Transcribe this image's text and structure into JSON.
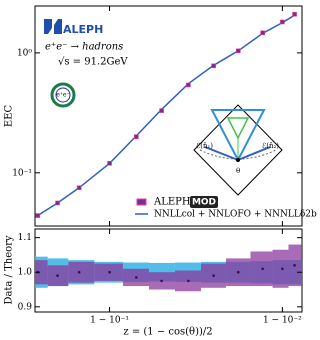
{
  "chart_data": [
    {
      "type": "line",
      "experiment": "ALEPH",
      "icon": "e⁺e⁻",
      "annotations": [
        "e⁺e⁻ → hadrons",
        "√s = 91.2GeV"
      ],
      "diagram_labels": [
        "ℰ(n̂₁)",
        "ℰ(n̂₂)",
        "θ"
      ],
      "legend_badge": "MOD",
      "ylabel": "EEC",
      "xlabel": "z = (1 − cos(θ))/2",
      "xscale": "log1m",
      "yscale": "log",
      "x": [
        0.74,
        0.8,
        0.85,
        0.9,
        0.93,
        0.95,
        0.965,
        0.975,
        0.982,
        0.987,
        0.99,
        0.9915
      ],
      "xlim": [
        0.73,
        0.9923
      ],
      "xticks": [
        {
          "value": 0.9,
          "label": "1 − 10⁻¹"
        },
        {
          "value": 0.99,
          "label": "1 − 10⁻²"
        }
      ],
      "ylim": [
        0.036,
        2.46
      ],
      "yticks": [
        {
          "value": 0.1,
          "label": "10⁻¹"
        },
        {
          "value": 1,
          "label": "10⁰"
        }
      ],
      "series": [
        {
          "name": "ALEPH",
          "color": "#7b2d8e",
          "values": [
            0.044,
            0.056,
            0.075,
            0.12,
            0.2,
            0.33,
            0.54,
            0.78,
            1.04,
            1.47,
            1.81,
            2.1
          ]
        },
        {
          "name": "NNLLcol + NNLOFO + NNNLLδ2b",
          "color": "#2f5fc4",
          "values": [
            0.044,
            0.056,
            0.075,
            0.12,
            0.203,
            0.338,
            0.553,
            0.788,
            1.04,
            1.455,
            1.79,
            2.06
          ]
        }
      ]
    },
    {
      "type": "ratio",
      "ylabel": "Data / Theory",
      "ylim": [
        0.885,
        1.125
      ],
      "yticks": [
        {
          "value": 0.9,
          "label": "0.9"
        },
        {
          "value": 1.0,
          "label": "1.0"
        },
        {
          "value": 1.1,
          "label": "1.1"
        }
      ],
      "series": [
        {
          "color": "#3fb6e6",
          "values": [
            1,
            1,
            1,
            1,
            1,
            1,
            1,
            1,
            1,
            1,
            1,
            1
          ],
          "errors": [
            0.045,
            0.04,
            0.035,
            0.03,
            0.028,
            0.027,
            0.028,
            0.03,
            0.03,
            0.032,
            0.035,
            0.035
          ]
        },
        {
          "color": "#8b3a9e",
          "values": [
            1.0,
            0.99,
            1.0,
            1.0,
            0.985,
            0.975,
            0.975,
            0.99,
            1.0,
            1.01,
            1.01,
            1.02
          ],
          "errors": [
            0.035,
            0.03,
            0.03,
            0.025,
            0.025,
            0.025,
            0.03,
            0.035,
            0.04,
            0.05,
            0.055,
            0.06
          ]
        }
      ]
    }
  ]
}
